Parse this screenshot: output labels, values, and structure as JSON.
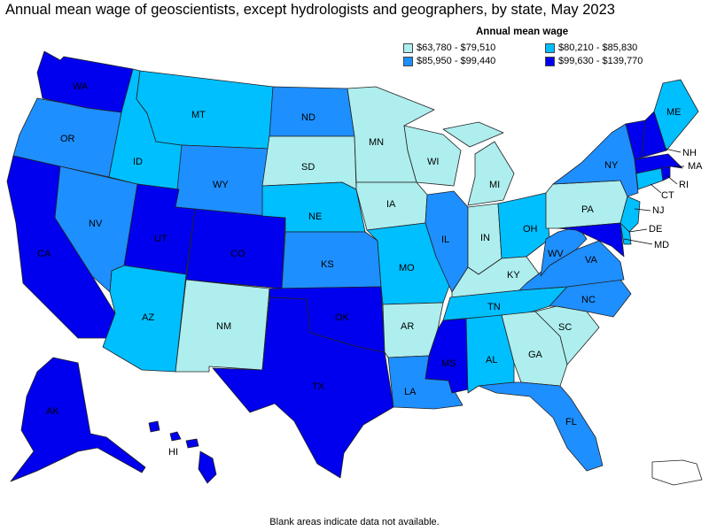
{
  "title": "Annual mean wage of geoscientists, except hydrologists and geographers, by state, May 2023",
  "legend": {
    "title": "Annual mean wage",
    "items": [
      {
        "range": "$63,780 - $79,510",
        "color": "#aeeeee"
      },
      {
        "range": "$80,210 - $85,830",
        "color": "#00bfff"
      },
      {
        "range": "$85,950 - $99,440",
        "color": "#1e8fff"
      },
      {
        "range": "$99,630 - $139,770",
        "color": "#0000ee"
      }
    ]
  },
  "footer": "Blank areas indicate data not available.",
  "state_labels": {
    "WA": "WA",
    "OR": "OR",
    "CA": "CA",
    "NV": "NV",
    "ID": "ID",
    "MT": "MT",
    "WY": "WY",
    "UT": "UT",
    "CO": "CO",
    "AZ": "AZ",
    "NM": "NM",
    "ND": "ND",
    "SD": "SD",
    "NE": "NE",
    "KS": "KS",
    "OK": "OK",
    "TX": "TX",
    "MN": "MN",
    "IA": "IA",
    "MO": "MO",
    "AR": "AR",
    "LA": "LA",
    "WI": "WI",
    "IL": "IL",
    "MI": "MI",
    "IN": "IN",
    "OH": "OH",
    "KY": "KY",
    "TN": "TN",
    "MS": "MS",
    "AL": "AL",
    "GA": "GA",
    "FL": "FL",
    "SC": "SC",
    "NC": "NC",
    "VA": "VA",
    "WV": "WV",
    "PA": "PA",
    "NY": "NY",
    "ME": "ME",
    "NH": "NH",
    "MA": "MA",
    "RI": "RI",
    "CT": "CT",
    "NJ": "NJ",
    "DE": "DE",
    "MD": "MD",
    "AK": "AK",
    "HI": "HI"
  },
  "state_bins": {
    "WA": 3,
    "OR": 2,
    "CA": 3,
    "NV": 2,
    "ID": 1,
    "MT": 1,
    "WY": 2,
    "UT": 3,
    "CO": 3,
    "AZ": 1,
    "NM": 0,
    "ND": 2,
    "SD": 0,
    "NE": 1,
    "KS": 2,
    "OK": 3,
    "TX": 3,
    "MN": 0,
    "IA": 0,
    "MO": 1,
    "AR": 0,
    "LA": 2,
    "WI": 0,
    "IL": 2,
    "MI": 0,
    "IN": 0,
    "OH": 1,
    "KY": 0,
    "TN": 1,
    "MS": 3,
    "AL": 1,
    "GA": 0,
    "FL": 2,
    "SC": 0,
    "NC": 2,
    "VA": 2,
    "WV": 2,
    "PA": 0,
    "NY": 2,
    "ME": 1,
    "NH": 3,
    "VT": 3,
    "MA": 3,
    "RI": 3,
    "CT": 1,
    "NJ": 1,
    "DE": 1,
    "MD": 3,
    "AK": 3,
    "HI": 3,
    "PR": -1
  }
}
